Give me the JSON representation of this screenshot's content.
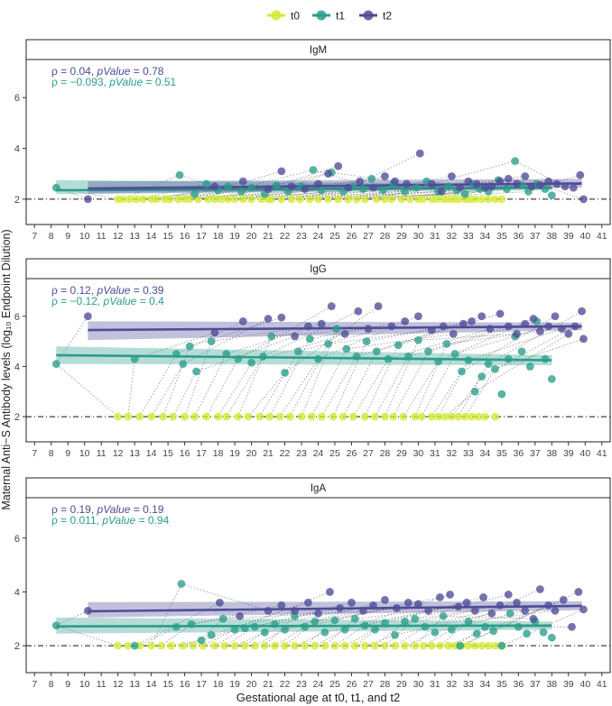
{
  "chart_data": {
    "type": "scatter",
    "legend": {
      "position": "top",
      "entries": [
        {
          "name": "t0",
          "color": "#D4E934"
        },
        {
          "name": "t1",
          "color": "#2A9D8A"
        },
        {
          "name": "t2",
          "color": "#4E4C97"
        }
      ]
    },
    "xlabel": "Gestational age at t0, t1, and t2",
    "ylabel": "Maternal Anti−S Antibody levels (log₁₀ Endpoint Dilution)",
    "xlim": [
      6.5,
      41.5
    ],
    "ylim": [
      1,
      7.5
    ],
    "x_ticks": [
      7,
      8,
      9,
      10,
      11,
      12,
      13,
      14,
      15,
      16,
      17,
      18,
      19,
      20,
      21,
      22,
      23,
      24,
      25,
      26,
      27,
      28,
      29,
      30,
      31,
      32,
      33,
      34,
      35,
      36,
      37,
      38,
      39,
      40,
      41
    ],
    "y_ticks": [
      2,
      4,
      6
    ],
    "reference_line_y": 2,
    "grid": false,
    "panels": [
      {
        "title": "IgM",
        "stats": [
          {
            "prefix": "ρ = 0.04, ",
            "italic": "pValue",
            "suffix": " = 0.78",
            "color": "#4E4C97"
          },
          {
            "prefix": "ρ = −0.093, ",
            "italic": "pValue",
            "suffix": " = 0.51",
            "color": "#2A9D8A"
          }
        ],
        "fits": [
          {
            "series": "t1",
            "x": [
              8.3,
              38
            ],
            "y": [
              2.35,
              2.45
            ],
            "ci_low": [
              2.2,
              2.35
            ],
            "ci_high": [
              2.75,
              2.6
            ]
          },
          {
            "series": "t2",
            "x": [
              10.2,
              39.8
            ],
            "y": [
              2.42,
              2.62
            ],
            "ci_low": [
              2.22,
              2.45
            ],
            "ci_high": [
              2.7,
              2.8
            ]
          }
        ],
        "series": [
          {
            "name": "t0",
            "x": [
              12.0,
              12.3,
              12.7,
              13.1,
              13.5,
              14.0,
              14.3,
              14.8,
              15.1,
              15.6,
              16.0,
              16.3,
              16.8,
              17.4,
              17.8,
              18.2,
              18.6,
              19.0,
              19.5,
              20.0,
              20.6,
              21.0,
              21.2,
              21.8,
              22.4,
              22.9,
              23.5,
              24.0,
              24.6,
              25.2,
              25.8,
              26.3,
              26.8,
              27.5,
              28.0,
              28.4,
              29.0,
              29.5,
              30.0,
              30.3,
              30.8,
              31.1,
              31.5,
              31.8,
              32.1,
              32.4,
              32.8,
              33.1,
              33.4,
              33.8,
              34.2,
              34.6,
              35.0
            ],
            "y": [
              2,
              2,
              2,
              2,
              2,
              2,
              2,
              2,
              2,
              2,
              2,
              2,
              2,
              2,
              2,
              2,
              2,
              2,
              2,
              2,
              2,
              2,
              2,
              2,
              2,
              2,
              2,
              2,
              2,
              2,
              2,
              2,
              2,
              2,
              2,
              2,
              2,
              2,
              2,
              2,
              2,
              2,
              2,
              2,
              2,
              2,
              2,
              2,
              2,
              2,
              2,
              2,
              2
            ]
          },
          {
            "name": "t1",
            "x": [
              8.3,
              15.7,
              16.6,
              17.3,
              18.0,
              18.6,
              19.4,
              20.0,
              20.8,
              21.5,
              22.2,
              23.0,
              23.7,
              24.2,
              24.8,
              25.5,
              26.1,
              26.7,
              27.2,
              27.9,
              28.5,
              29.2,
              29.9,
              30.5,
              31.2,
              31.8,
              32.3,
              32.8,
              33.2,
              33.7,
              34.2,
              34.8,
              35.3,
              35.8,
              36.2,
              36.6,
              37.1,
              37.6,
              38.0
            ],
            "y": [
              2.45,
              2.95,
              2.2,
              2.6,
              2.35,
              2.5,
              2.3,
              2.45,
              2.2,
              2.55,
              2.3,
              2.5,
              3.15,
              2.35,
              3.05,
              2.3,
              2.5,
              2.4,
              2.8,
              2.35,
              2.6,
              2.3,
              2.45,
              2.7,
              2.3,
              2.5,
              2.35,
              2.2,
              2.6,
              2.4,
              2.3,
              2.75,
              2.4,
              3.5,
              2.55,
              2.3,
              2.6,
              2.4,
              2.15
            ]
          },
          {
            "name": "t2",
            "x": [
              10.2,
              17.8,
              19.5,
              21.0,
              21.8,
              22.4,
              23.2,
              24.0,
              24.6,
              25.2,
              25.8,
              26.5,
              27.3,
              28.0,
              28.6,
              29.3,
              30.1,
              30.8,
              31.4,
              32.0,
              32.5,
              33.0,
              33.5,
              34.0,
              34.4,
              34.9,
              35.4,
              35.9,
              36.4,
              36.8,
              37.3,
              37.8,
              38.3,
              38.8,
              39.3,
              39.7,
              39.9
            ],
            "y": [
              2.0,
              2.5,
              2.7,
              2.4,
              3.1,
              2.5,
              2.4,
              2.6,
              3.0,
              3.3,
              2.45,
              2.7,
              2.45,
              2.9,
              2.7,
              2.6,
              3.8,
              2.6,
              2.3,
              2.9,
              2.45,
              2.7,
              2.6,
              2.45,
              2.5,
              2.7,
              2.8,
              2.6,
              2.9,
              2.5,
              2.55,
              2.7,
              2.6,
              2.5,
              2.45,
              2.95,
              2.0
            ]
          }
        ]
      },
      {
        "title": "IgG",
        "stats": [
          {
            "prefix": "ρ = 0.12, ",
            "italic": "pValue",
            "suffix": " = 0.39",
            "color": "#4E4C97"
          },
          {
            "prefix": "ρ = −0.12, ",
            "italic": "pValue",
            "suffix": " = 0.4",
            "color": "#2A9D8A"
          }
        ],
        "fits": [
          {
            "series": "t1",
            "x": [
              8.3,
              38
            ],
            "y": [
              4.45,
              4.25
            ],
            "ci_low": [
              4.1,
              4.05
            ],
            "ci_high": [
              4.8,
              4.45
            ]
          },
          {
            "series": "t2",
            "x": [
              10.2,
              39.8
            ],
            "y": [
              5.45,
              5.6
            ],
            "ci_low": [
              5.05,
              5.45
            ],
            "ci_high": [
              5.8,
              5.75
            ]
          }
        ],
        "series": [
          {
            "name": "t0",
            "x": [
              12.0,
              12.6,
              13.3,
              14.0,
              14.7,
              15.3,
              16.0,
              16.6,
              17.3,
              18.0,
              18.5,
              19.2,
              19.8,
              20.5,
              21.1,
              21.7,
              22.3,
              23.0,
              23.6,
              24.2,
              24.9,
              25.5,
              26.1,
              26.8,
              27.4,
              28.0,
              28.5,
              29.1,
              29.8,
              30.2,
              30.8,
              31.2,
              31.6,
              32.0,
              32.4,
              32.8,
              33.2,
              33.6,
              34.0,
              34.6
            ],
            "y": [
              2,
              2,
              2,
              2,
              2,
              2,
              2,
              2,
              2,
              2,
              2,
              2,
              2,
              2,
              2,
              2,
              2,
              2,
              2,
              2,
              2,
              2,
              2,
              2,
              2,
              2,
              2,
              2,
              2,
              2,
              2,
              2,
              2,
              2,
              2,
              2,
              2,
              2,
              2,
              2
            ]
          },
          {
            "name": "t1",
            "x": [
              8.3,
              13.0,
              15.5,
              15.9,
              16.3,
              16.7,
              17.6,
              18.5,
              19.2,
              20.0,
              20.7,
              21.2,
              22.0,
              22.8,
              23.5,
              24.0,
              24.6,
              25.1,
              25.7,
              26.3,
              26.9,
              27.5,
              28.2,
              28.8,
              29.4,
              30.0,
              30.6,
              31.2,
              31.7,
              32.2,
              32.6,
              33.0,
              33.4,
              33.8,
              34.2,
              34.6,
              35.0,
              35.4,
              35.8,
              36.2,
              36.7,
              37.1,
              37.6,
              38.0
            ],
            "y": [
              4.1,
              4.3,
              4.5,
              4.1,
              4.8,
              3.8,
              5.0,
              4.5,
              4.3,
              4.15,
              4.4,
              5.2,
              3.75,
              4.6,
              5.1,
              4.3,
              4.9,
              5.5,
              4.7,
              4.4,
              5.0,
              4.6,
              4.3,
              4.85,
              4.4,
              5.05,
              4.6,
              4.2,
              4.9,
              4.5,
              3.8,
              4.25,
              3.0,
              3.6,
              4.1,
              3.9,
              2.9,
              4.3,
              5.2,
              4.6,
              4.0,
              5.8,
              4.3,
              3.5
            ]
          },
          {
            "name": "t2",
            "x": [
              10.2,
              17.8,
              19.5,
              21.0,
              21.8,
              22.6,
              23.4,
              24.2,
              24.8,
              25.6,
              26.4,
              27.0,
              27.6,
              28.4,
              29.2,
              30.0,
              30.8,
              31.5,
              32.1,
              32.7,
              33.2,
              33.8,
              34.3,
              34.9,
              35.4,
              35.9,
              36.4,
              36.9,
              37.3,
              37.8,
              38.2,
              38.6,
              39.0,
              39.4,
              39.8,
              39.9
            ],
            "y": [
              6.0,
              5.35,
              5.8,
              5.9,
              5.95,
              5.2,
              5.6,
              5.7,
              6.4,
              5.3,
              6.2,
              5.5,
              6.4,
              5.6,
              5.8,
              6.0,
              5.45,
              5.6,
              5.3,
              5.7,
              5.8,
              6.0,
              5.5,
              6.1,
              5.6,
              5.3,
              5.7,
              5.9,
              5.4,
              5.6,
              6.0,
              5.5,
              5.3,
              5.6,
              6.2,
              5.1
            ]
          }
        ]
      },
      {
        "title": "IgA",
        "stats": [
          {
            "prefix": "ρ = 0.19, ",
            "italic": "pValue",
            "suffix": " = 0.19",
            "color": "#4E4C97"
          },
          {
            "prefix": "ρ = 0.011, ",
            "italic": "pValue",
            "suffix": " = 0.94",
            "color": "#2A9D8A"
          }
        ],
        "fits": [
          {
            "series": "t1",
            "x": [
              8.3,
              38
            ],
            "y": [
              2.72,
              2.75
            ],
            "ci_low": [
              2.45,
              2.6
            ],
            "ci_high": [
              3.05,
              2.9
            ]
          },
          {
            "series": "t2",
            "x": [
              10.2,
              39.8
            ],
            "y": [
              3.28,
              3.48
            ],
            "ci_low": [
              3.05,
              3.32
            ],
            "ci_high": [
              3.62,
              3.65
            ]
          }
        ],
        "series": [
          {
            "name": "t0",
            "x": [
              12.0,
              12.6,
              13.3,
              14.0,
              14.6,
              15.2,
              15.9,
              16.5,
              17.1,
              17.8,
              18.4,
              19.0,
              19.6,
              20.2,
              20.8,
              21.4,
              22.0,
              22.6,
              23.2,
              23.8,
              24.4,
              25.0,
              25.6,
              26.2,
              26.8,
              27.4,
              28.0,
              28.6,
              29.2,
              29.8,
              30.3,
              30.8,
              31.3,
              31.8,
              32.2,
              32.6,
              33.0,
              33.4,
              33.8,
              34.2,
              34.6,
              35.0
            ],
            "y": [
              2,
              2,
              2,
              2,
              2,
              2,
              2,
              2,
              2,
              2,
              2,
              2,
              2,
              2,
              2,
              2,
              2,
              2,
              2,
              2,
              2,
              2,
              2,
              2,
              2,
              2,
              2,
              2,
              2,
              2,
              2,
              2,
              2,
              2,
              2,
              2,
              2,
              2,
              2,
              2,
              2,
              2
            ]
          },
          {
            "name": "t1",
            "x": [
              8.3,
              13.0,
              15.5,
              15.8,
              16.4,
              17.0,
              17.6,
              18.3,
              19.0,
              19.6,
              20.2,
              20.8,
              21.4,
              22.0,
              22.6,
              23.2,
              23.8,
              24.4,
              25.0,
              25.6,
              26.2,
              26.8,
              27.4,
              28.0,
              28.6,
              29.2,
              29.8,
              30.4,
              31.0,
              31.5,
              32.0,
              32.5,
              33.0,
              33.5,
              34.0,
              34.5,
              35.0,
              35.5,
              36.0,
              36.5,
              37.0,
              37.5,
              38.0
            ],
            "y": [
              2.75,
              2.0,
              2.7,
              4.3,
              2.8,
              2.2,
              2.4,
              3.0,
              2.6,
              2.65,
              2.7,
              2.5,
              2.8,
              2.6,
              3.1,
              2.7,
              2.9,
              2.5,
              2.95,
              2.6,
              3.0,
              2.75,
              2.6,
              2.85,
              2.4,
              2.9,
              3.0,
              2.7,
              2.5,
              3.1,
              2.6,
              2.0,
              2.9,
              2.45,
              2.7,
              2.55,
              2.0,
              3.2,
              2.7,
              2.45,
              2.9,
              2.5,
              2.3
            ]
          },
          {
            "name": "t2",
            "x": [
              10.2,
              18.1,
              19.3,
              21.0,
              21.8,
              22.6,
              23.4,
              24.0,
              24.7,
              25.3,
              26.0,
              26.7,
              27.3,
              28.0,
              28.7,
              29.4,
              30.0,
              30.6,
              31.3,
              31.9,
              32.4,
              32.9,
              33.4,
              33.9,
              34.4,
              34.9,
              35.4,
              35.9,
              36.4,
              36.9,
              37.3,
              37.8,
              38.2,
              38.7,
              39.2,
              39.6,
              39.9
            ],
            "y": [
              3.3,
              3.6,
              3.1,
              3.3,
              3.5,
              3.3,
              3.6,
              3.2,
              4.0,
              3.4,
              3.6,
              3.3,
              3.5,
              3.7,
              3.4,
              3.6,
              3.55,
              3.3,
              3.8,
              3.9,
              3.45,
              3.6,
              3.3,
              3.8,
              3.2,
              3.5,
              3.9,
              3.6,
              3.3,
              3.0,
              4.1,
              3.5,
              3.3,
              3.7,
              2.7,
              4.0,
              3.35
            ]
          }
        ]
      }
    ]
  }
}
